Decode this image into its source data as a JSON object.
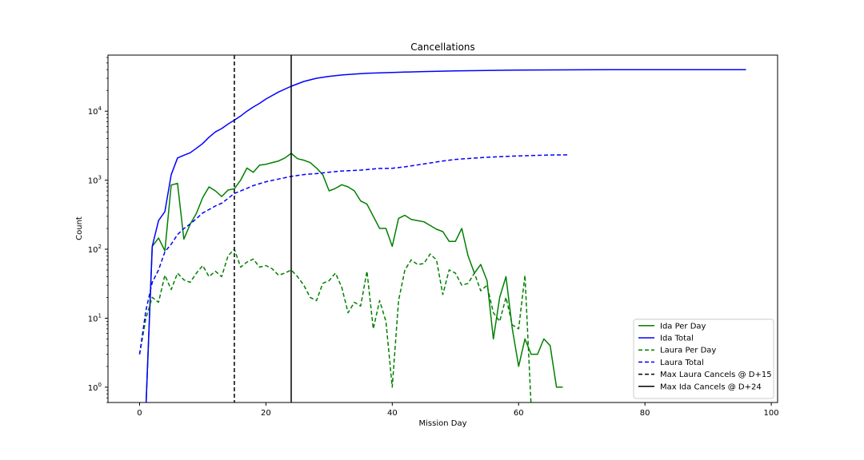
{
  "chart_data": {
    "type": "line",
    "title": "Cancellations",
    "xlabel": "Mission Day",
    "ylabel": "Count",
    "xlim": [
      -5,
      101
    ],
    "ylim": [
      0.6,
      65000
    ],
    "yscale": "log",
    "x_ticks": [
      0,
      20,
      40,
      60,
      80,
      100
    ],
    "y_ticks": [
      {
        "value": 1,
        "base": "10",
        "exp": "0"
      },
      {
        "value": 10,
        "base": "10",
        "exp": "1"
      },
      {
        "value": 100,
        "base": "10",
        "exp": "2"
      },
      {
        "value": 1000,
        "base": "10",
        "exp": "3"
      },
      {
        "value": 10000,
        "base": "10",
        "exp": "4"
      }
    ],
    "grid": false,
    "legend_position": "lower-right",
    "series": [
      {
        "name": "Ida Per Day",
        "color": "#008000",
        "dash": "solid",
        "x": [
          1,
          2,
          3,
          4,
          5,
          6,
          7,
          8,
          9,
          10,
          11,
          12,
          13,
          14,
          15,
          16,
          17,
          18,
          19,
          20,
          21,
          22,
          23,
          24,
          25,
          26,
          27,
          28,
          29,
          30,
          31,
          32,
          33,
          34,
          35,
          36,
          37,
          38,
          39,
          40,
          41,
          42,
          43,
          44,
          45,
          46,
          47,
          48,
          49,
          50,
          51,
          52,
          53,
          54,
          55,
          56,
          57,
          58,
          59,
          60,
          61,
          62,
          63,
          64,
          65,
          66,
          67
        ],
        "y": [
          0.5,
          110,
          145,
          95,
          850,
          900,
          140,
          230,
          330,
          560,
          800,
          700,
          580,
          720,
          750,
          1000,
          1500,
          1300,
          1650,
          1700,
          1800,
          1900,
          2100,
          2450,
          2050,
          1950,
          1800,
          1500,
          1200,
          700,
          760,
          860,
          800,
          700,
          500,
          450,
          300,
          200,
          200,
          110,
          280,
          310,
          270,
          260,
          250,
          220,
          195,
          180,
          130,
          130,
          200,
          80,
          45,
          60,
          35,
          5,
          20,
          40,
          7,
          2,
          5,
          3,
          3,
          5,
          4,
          1,
          1
        ]
      },
      {
        "name": "Ida Total",
        "color": "#0000ff",
        "dash": "solid",
        "x": [
          1,
          2,
          3,
          4,
          5,
          6,
          7,
          8,
          9,
          10,
          11,
          12,
          13,
          14,
          15,
          16,
          17,
          18,
          19,
          20,
          22,
          24,
          26,
          28,
          30,
          32,
          34,
          36,
          38,
          40,
          45,
          50,
          55,
          60,
          70,
          80,
          90,
          96
        ],
        "y": [
          0.5,
          110,
          260,
          350,
          1200,
          2100,
          2300,
          2500,
          2900,
          3400,
          4200,
          5000,
          5600,
          6500,
          7400,
          8500,
          10000,
          11500,
          13000,
          15000,
          19000,
          23000,
          27000,
          30000,
          32000,
          33500,
          34500,
          35500,
          36000,
          36500,
          37500,
          38500,
          39000,
          39500,
          39800,
          40000,
          40000,
          40000
        ]
      },
      {
        "name": "Laura Per Day",
        "color": "#008000",
        "dash": "dashed",
        "x": [
          0,
          1,
          2,
          3,
          4,
          5,
          6,
          7,
          8,
          9,
          10,
          11,
          12,
          13,
          14,
          15,
          16,
          17,
          18,
          19,
          20,
          21,
          22,
          23,
          24,
          25,
          26,
          27,
          28,
          29,
          30,
          31,
          32,
          33,
          34,
          35,
          36,
          37,
          38,
          39,
          40,
          41,
          42,
          43,
          44,
          45,
          46,
          47,
          48,
          49,
          50,
          51,
          52,
          53,
          54,
          55,
          56,
          57,
          58,
          59,
          60,
          61,
          62,
          63
        ],
        "y": [
          3,
          10,
          20,
          17,
          42,
          26,
          45,
          36,
          33,
          45,
          58,
          40,
          48,
          40,
          80,
          100,
          55,
          65,
          72,
          55,
          58,
          52,
          42,
          45,
          50,
          40,
          30,
          20,
          18,
          32,
          35,
          45,
          28,
          12,
          17,
          15,
          48,
          7,
          18,
          9,
          1,
          18,
          50,
          70,
          60,
          62,
          85,
          70,
          22,
          50,
          45,
          30,
          32,
          45,
          25,
          30,
          12,
          9,
          20,
          8,
          7,
          42,
          0.5,
          0.5
        ]
      },
      {
        "name": "Laura Total",
        "color": "#0000ff",
        "dash": "dashed",
        "x": [
          0,
          1,
          2,
          3,
          4,
          5,
          6,
          7,
          8,
          9,
          10,
          11,
          12,
          13,
          14,
          15,
          16,
          17,
          18,
          19,
          20,
          22,
          24,
          26,
          28,
          30,
          32,
          35,
          38,
          40,
          42,
          45,
          48,
          50,
          55,
          60,
          65,
          68
        ],
        "y": [
          3,
          13,
          33,
          50,
          92,
          118,
          163,
          199,
          232,
          277,
          335,
          375,
          423,
          463,
          543,
          643,
          698,
          763,
          835,
          890,
          948,
          1040,
          1135,
          1205,
          1245,
          1305,
          1360,
          1400,
          1480,
          1490,
          1560,
          1720,
          1900,
          2000,
          2150,
          2250,
          2320,
          2330
        ]
      },
      {
        "name": "Max Laura Cancels @ D+15",
        "color": "#000000",
        "dash": "dashed",
        "vline": 15
      },
      {
        "name": "Max Ida Cancels @ D+24",
        "color": "#000000",
        "dash": "solid",
        "vline": 24
      }
    ]
  }
}
